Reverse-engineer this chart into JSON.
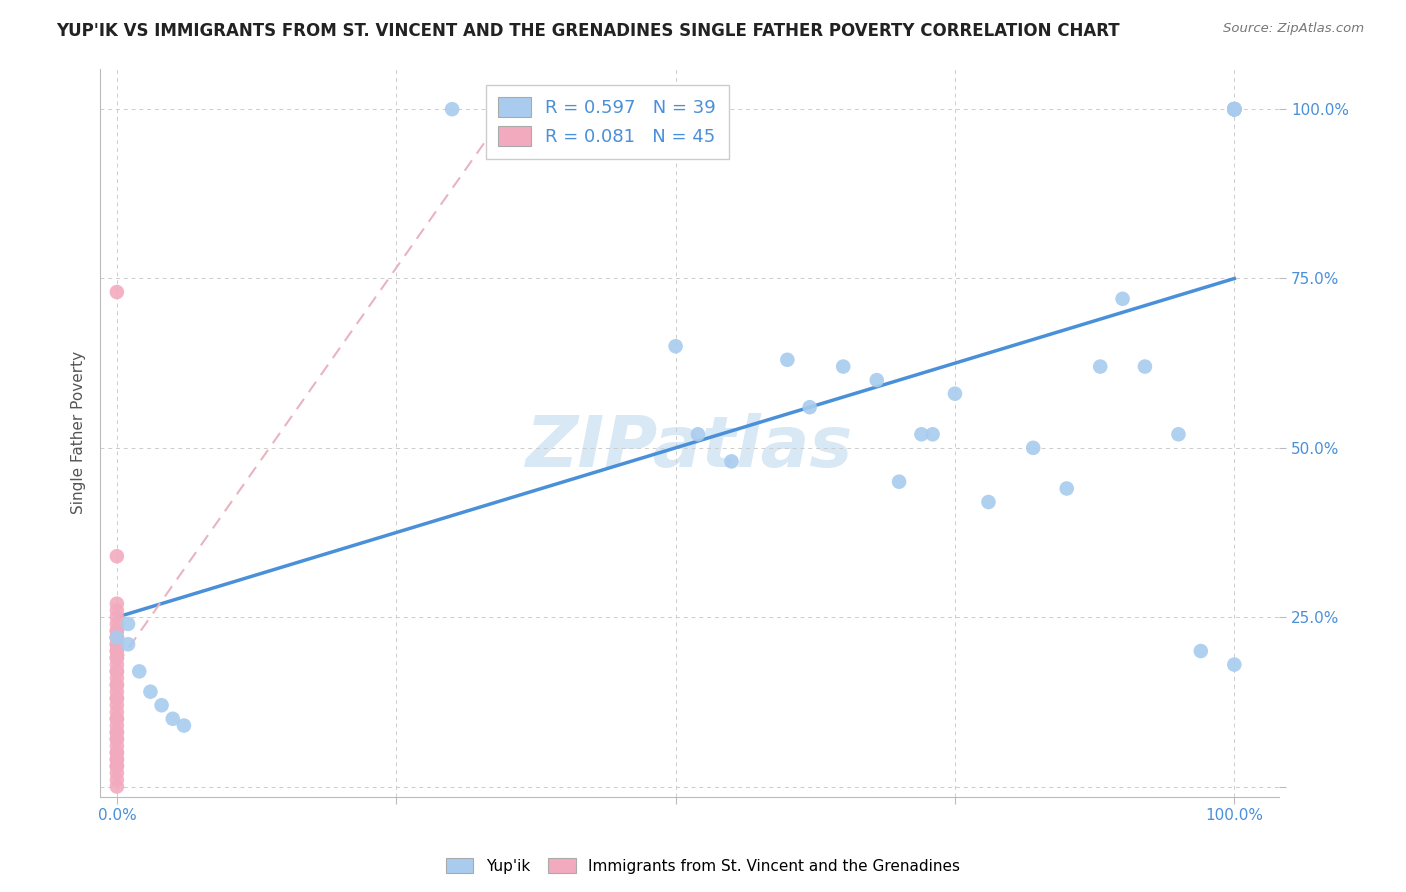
{
  "title": "YUP'IK VS IMMIGRANTS FROM ST. VINCENT AND THE GRENADINES SINGLE FATHER POVERTY CORRELATION CHART",
  "source": "Source: ZipAtlas.com",
  "ylabel_label": "Single Father Poverty",
  "legend_r1": "R = 0.597",
  "legend_n1": "N = 39",
  "legend_r2": "R = 0.081",
  "legend_n2": "N = 45",
  "blue_color": "#A8CBEE",
  "pink_color": "#F2ABBE",
  "line_blue_color": "#4A90D9",
  "line_pink_color": "#E8B4C0",
  "watermark_color": "#D8E8F5",
  "blue_scatter_x": [
    0.3,
    0.0,
    0.01,
    0.01,
    0.02,
    0.03,
    0.04,
    0.05,
    0.06,
    0.5,
    0.52,
    0.55,
    0.6,
    0.62,
    0.65,
    0.68,
    0.7,
    0.72,
    0.73,
    0.75,
    0.78,
    0.82,
    0.85,
    0.88,
    0.9,
    0.92,
    0.95,
    0.97,
    1.0,
    1.0,
    1.0,
    1.0,
    1.0,
    1.0,
    1.0,
    1.0,
    1.0,
    1.0,
    1.0
  ],
  "blue_scatter_y": [
    1.0,
    0.22,
    0.24,
    0.21,
    0.17,
    0.14,
    0.12,
    0.1,
    0.09,
    0.65,
    0.52,
    0.48,
    0.63,
    0.56,
    0.62,
    0.6,
    0.45,
    0.52,
    0.52,
    0.58,
    0.42,
    0.5,
    0.44,
    0.62,
    0.72,
    0.62,
    0.52,
    0.2,
    0.18,
    1.0,
    1.0,
    1.0,
    1.0,
    1.0,
    1.0,
    1.0,
    1.0,
    1.0,
    1.0
  ],
  "pink_scatter_x": [
    0.0,
    0.0,
    0.0,
    0.0,
    0.0,
    0.0,
    0.0,
    0.0,
    0.0,
    0.0,
    0.0,
    0.0,
    0.0,
    0.0,
    0.0,
    0.0,
    0.0,
    0.0,
    0.0,
    0.0,
    0.0,
    0.0,
    0.0,
    0.0,
    0.0,
    0.0,
    0.0,
    0.0,
    0.0,
    0.0,
    0.0,
    0.0,
    0.0,
    0.0,
    0.0,
    0.0,
    0.0,
    0.0,
    0.0,
    0.0,
    0.0,
    0.0,
    0.0,
    0.0,
    0.0
  ],
  "pink_scatter_y": [
    0.73,
    0.34,
    0.27,
    0.26,
    0.25,
    0.24,
    0.23,
    0.23,
    0.22,
    0.22,
    0.22,
    0.21,
    0.21,
    0.2,
    0.2,
    0.19,
    0.19,
    0.18,
    0.17,
    0.17,
    0.16,
    0.15,
    0.15,
    0.14,
    0.13,
    0.13,
    0.12,
    0.11,
    0.1,
    0.1,
    0.09,
    0.08,
    0.08,
    0.07,
    0.07,
    0.06,
    0.05,
    0.05,
    0.04,
    0.04,
    0.03,
    0.03,
    0.02,
    0.01,
    0.0
  ],
  "blue_line_x": [
    0.0,
    1.0
  ],
  "blue_line_y": [
    0.25,
    0.75
  ],
  "pink_line_x": [
    0.0,
    0.35
  ],
  "pink_line_y": [
    0.18,
    1.0
  ],
  "xlim": [
    -0.015,
    1.04
  ],
  "ylim": [
    -0.015,
    1.06
  ]
}
